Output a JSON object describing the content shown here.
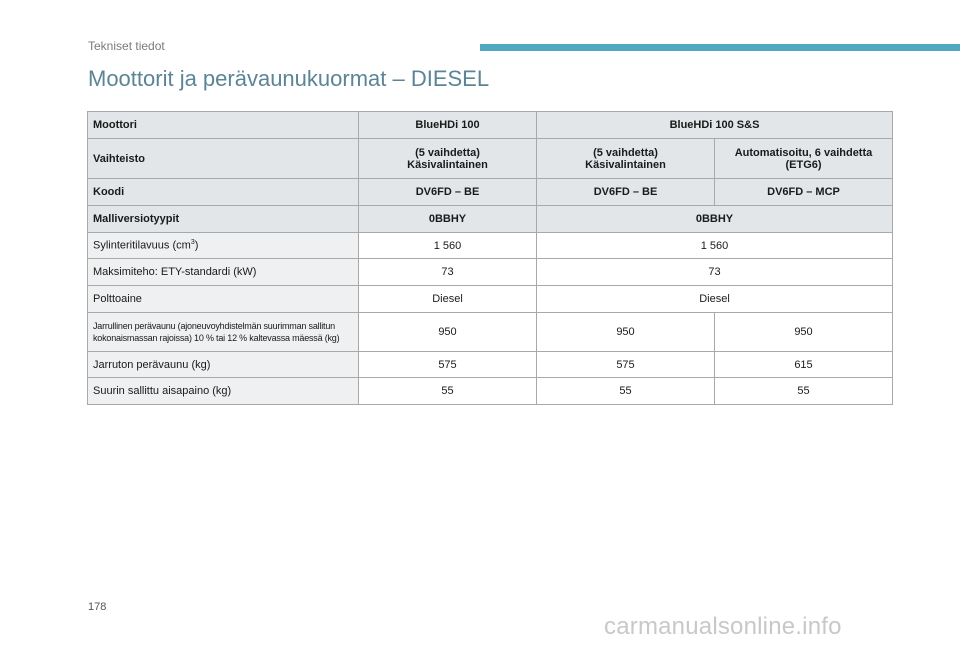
{
  "header": {
    "section_label": "Tekniset tiedot",
    "accent_color": "#4fa8bf"
  },
  "title": "Moottorit ja perävaunukuormat – DIESEL",
  "table": {
    "moottori": {
      "label": "Moottori",
      "c1": "BlueHDi 100",
      "c2": "BlueHDi 100 S&S"
    },
    "vaihteisto": {
      "label": "Vaihteisto",
      "c1_line1": "(5 vaihdetta)",
      "c1_line2": "Käsivalintainen",
      "c2_line1": "(5 vaihdetta)",
      "c2_line2": "Käsivalintainen",
      "c3_line1": "Automatisoitu, 6 vaihdetta",
      "c3_line2": "(ETG6)"
    },
    "koodi": {
      "label": "Koodi",
      "c1": "DV6FD – BE",
      "c2": "DV6FD – BE",
      "c3": "DV6FD – MCP"
    },
    "malliversiot": {
      "label": "Malliversiotyypit",
      "c1": "0BBHY",
      "c2": "0BBHY"
    },
    "sylinteri": {
      "label": "Sylinteritilavuus (cm",
      "label_sup": "3",
      "label_end": ")",
      "c1": "1 560",
      "c2": "1 560"
    },
    "teho": {
      "label": "Maksimiteho: ETY-standardi (kW)",
      "c1": "73",
      "c2": "73"
    },
    "polttoaine": {
      "label": "Polttoaine",
      "c1": "Diesel",
      "c2": "Diesel"
    },
    "jarrullinen": {
      "label_line1": "Jarrullinen perävaunu (ajoneuvoyhdistelmän suurimman sallitun",
      "label_line2": "kokonaismassan rajoissa) 10 % tai 12 % kaltevassa mäessä (kg)",
      "c1": "950",
      "c2": "950",
      "c3": "950"
    },
    "jarruton": {
      "label": "Jarruton perävaunu (kg)",
      "c1": "575",
      "c2": "575",
      "c3": "615"
    },
    "aisapaino": {
      "label": "Suurin sallittu aisapaino (kg)",
      "c1": "55",
      "c2": "55",
      "c3": "55"
    }
  },
  "footer": {
    "page_number": "178",
    "watermark": "carmanualsonline.info"
  }
}
